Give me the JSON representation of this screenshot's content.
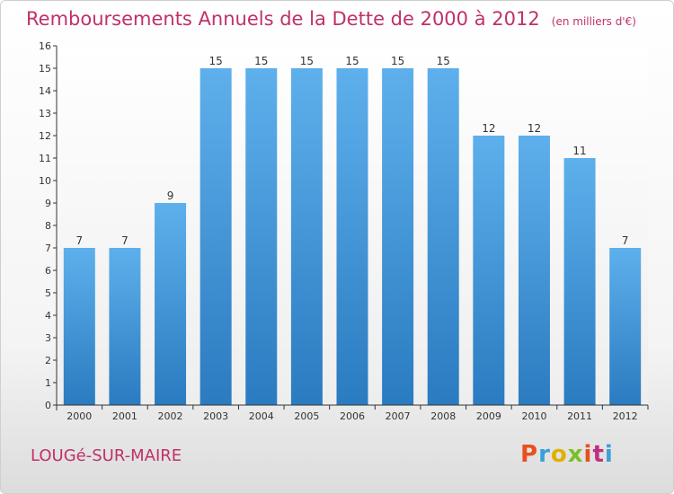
{
  "header": {
    "title": "Remboursements Annuels de la Dette de 2000 à 2012",
    "unit": "(en milliers d'€)"
  },
  "footer": {
    "town": "LOUGé-SUR-MAIRE",
    "logo": "Proxiti",
    "logo_colors": [
      "#e8501e",
      "#3aa0d8",
      "#e0b000",
      "#7bbf2a",
      "#e8501e",
      "#c03080",
      "#3aa0d8"
    ]
  },
  "colors": {
    "bar_top": "#5eb0ec",
    "bar_bottom": "#2a7bc0",
    "title": "#c0306a",
    "axis": "#333333"
  },
  "chart_data": {
    "type": "bar",
    "title": "Remboursements Annuels de la Dette de 2000 à 2012",
    "xlabel": "",
    "ylabel": "",
    "categories": [
      "2000",
      "2001",
      "2002",
      "2003",
      "2004",
      "2005",
      "2006",
      "2007",
      "2008",
      "2009",
      "2010",
      "2011",
      "2012"
    ],
    "values": [
      7,
      7,
      9,
      15,
      15,
      15,
      15,
      15,
      15,
      12,
      12,
      11,
      7
    ],
    "data_labels": [
      "7",
      "7",
      "9",
      "15",
      "15",
      "15",
      "15",
      "15",
      "15",
      "12",
      "12",
      "11",
      "7"
    ],
    "ylim": [
      0,
      16
    ],
    "yticks": [
      "0",
      "1",
      "2",
      "3",
      "4",
      "5",
      "6",
      "7",
      "8",
      "9",
      "10",
      "11",
      "12",
      "13",
      "14",
      "15",
      "16"
    ],
    "grid": false,
    "legend": "none"
  }
}
